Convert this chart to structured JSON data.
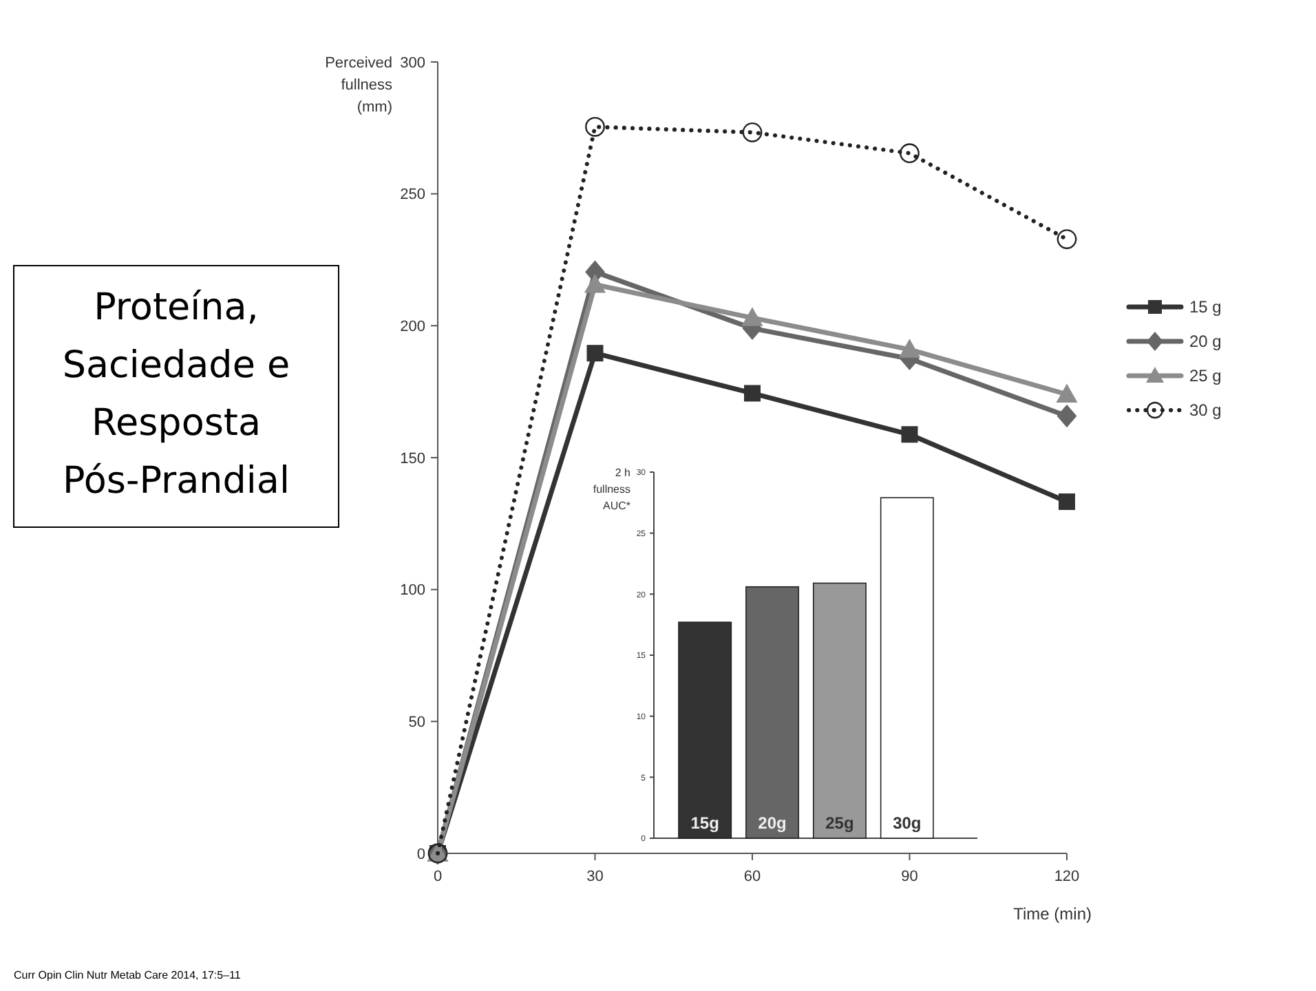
{
  "chart_data": [
    {
      "type": "line",
      "title": "Proteína, Saciedade e Resposta Pós-Prandial",
      "xlabel": "Time (min)",
      "ylabel": "Perceived fullness (mm)",
      "x": [
        0,
        30,
        60,
        90,
        120
      ],
      "xlim": [
        0,
        120
      ],
      "xticks": [
        0,
        30,
        60,
        90,
        120
      ],
      "ylim": [
        0,
        300
      ],
      "yticks": [
        0,
        50,
        100,
        150,
        200,
        250,
        300
      ],
      "legend": "right",
      "grid": false,
      "series": [
        {
          "name": "15 g",
          "color": "#333333",
          "marker": "square",
          "line_style": "solid",
          "values": [
            0,
            189.6,
            174.4,
            158.8,
            133.3
          ]
        },
        {
          "name": "20 g",
          "color": "#666666",
          "marker": "diamond",
          "line_style": "solid",
          "values": [
            0,
            220.4,
            199,
            187.5,
            165.8
          ]
        },
        {
          "name": "25 g",
          "color": "#8c8c8c",
          "marker": "triangle",
          "line_style": "solid",
          "values": [
            0,
            215.6,
            203,
            191,
            174
          ]
        },
        {
          "name": "30 g",
          "color": "#222222",
          "marker": "circle",
          "line_style": "dotted",
          "values": [
            0,
            275.4,
            273.3,
            265.4,
            232.8
          ]
        }
      ],
      "annotations": [
        "Curr Opin Clin Nutr Metab Care 2014, 17:5–11"
      ]
    },
    {
      "type": "bar",
      "ylabel": "2 h fullness AUC*",
      "categories": [
        "15g",
        "20g",
        "25g",
        "30g"
      ],
      "values": [
        17.7,
        20.6,
        20.9,
        27.9
      ],
      "colors": [
        "#333333",
        "#666666",
        "#999999",
        "#ffffff"
      ],
      "ylim": [
        0,
        30
      ],
      "yticks": [
        0,
        5,
        10,
        15,
        20,
        25,
        30
      ]
    }
  ]
}
